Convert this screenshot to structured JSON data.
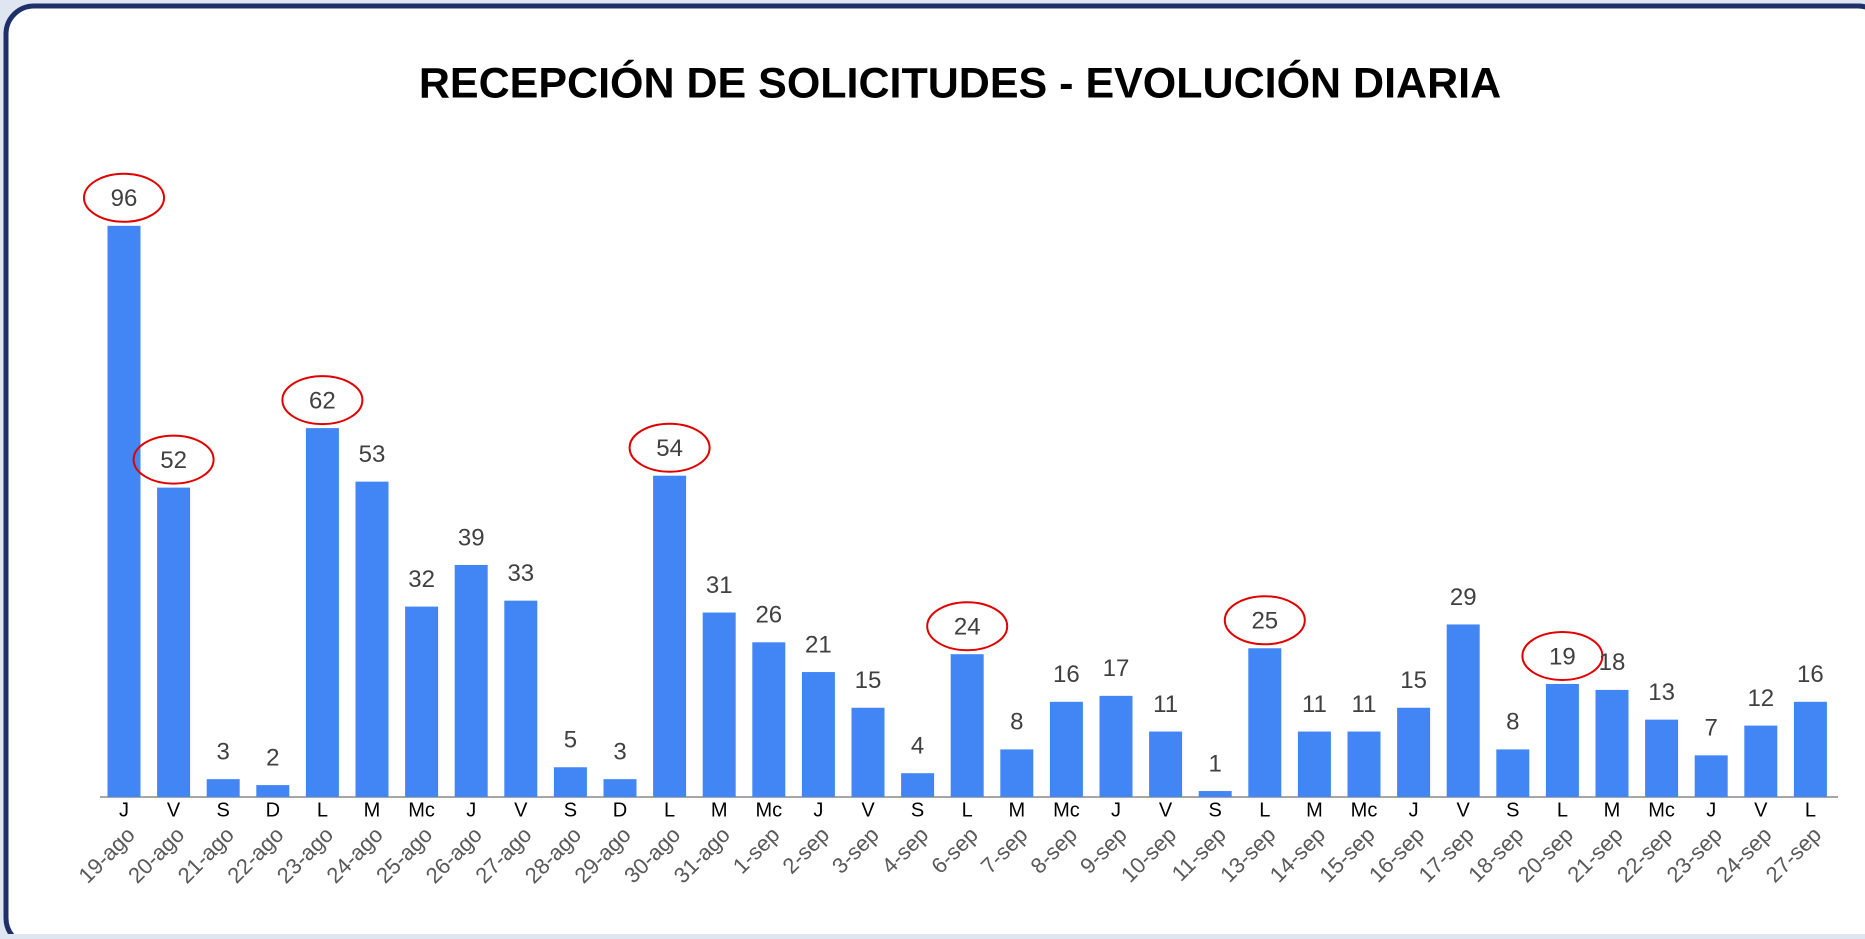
{
  "chart_data": {
    "type": "bar",
    "title": "RECEPCIÓN DE SOLICITUDES - EVOLUCIÓN DIARIA",
    "categories": [
      "19-ago",
      "20-ago",
      "21-ago",
      "22-ago",
      "23-ago",
      "24-ago",
      "25-ago",
      "26-ago",
      "27-ago",
      "28-ago",
      "29-ago",
      "30-ago",
      "31-ago",
      "1-sep",
      "2-sep",
      "3-sep",
      "4-sep",
      "6-sep",
      "7-sep",
      "8-sep",
      "9-sep",
      "10-sep",
      "11-sep",
      "13-sep",
      "14-sep",
      "15-sep",
      "16-sep",
      "17-sep",
      "18-sep",
      "20-sep",
      "21-sep",
      "22-sep",
      "23-sep",
      "24-sep",
      "27-sep"
    ],
    "weekdays": [
      "J",
      "V",
      "S",
      "D",
      "L",
      "M",
      "Mc",
      "J",
      "V",
      "S",
      "D",
      "L",
      "M",
      "Mc",
      "J",
      "V",
      "S",
      "L",
      "M",
      "Mc",
      "J",
      "V",
      "S",
      "L",
      "M",
      "Mc",
      "J",
      "V",
      "S",
      "L",
      "M",
      "Mc",
      "J",
      "V",
      "L"
    ],
    "values": [
      96,
      52,
      3,
      2,
      62,
      53,
      32,
      39,
      33,
      5,
      3,
      54,
      31,
      26,
      21,
      15,
      4,
      24,
      8,
      16,
      17,
      11,
      1,
      25,
      11,
      11,
      15,
      29,
      8,
      19,
      18,
      13,
      7,
      12,
      16
    ],
    "highlighted": [
      true,
      true,
      false,
      false,
      true,
      false,
      false,
      false,
      false,
      false,
      false,
      true,
      false,
      false,
      false,
      false,
      false,
      true,
      false,
      false,
      false,
      false,
      false,
      true,
      false,
      false,
      false,
      false,
      false,
      true,
      false,
      false,
      false,
      false,
      false
    ],
    "color": "#4285f4",
    "highlight_color": "#e00000"
  }
}
